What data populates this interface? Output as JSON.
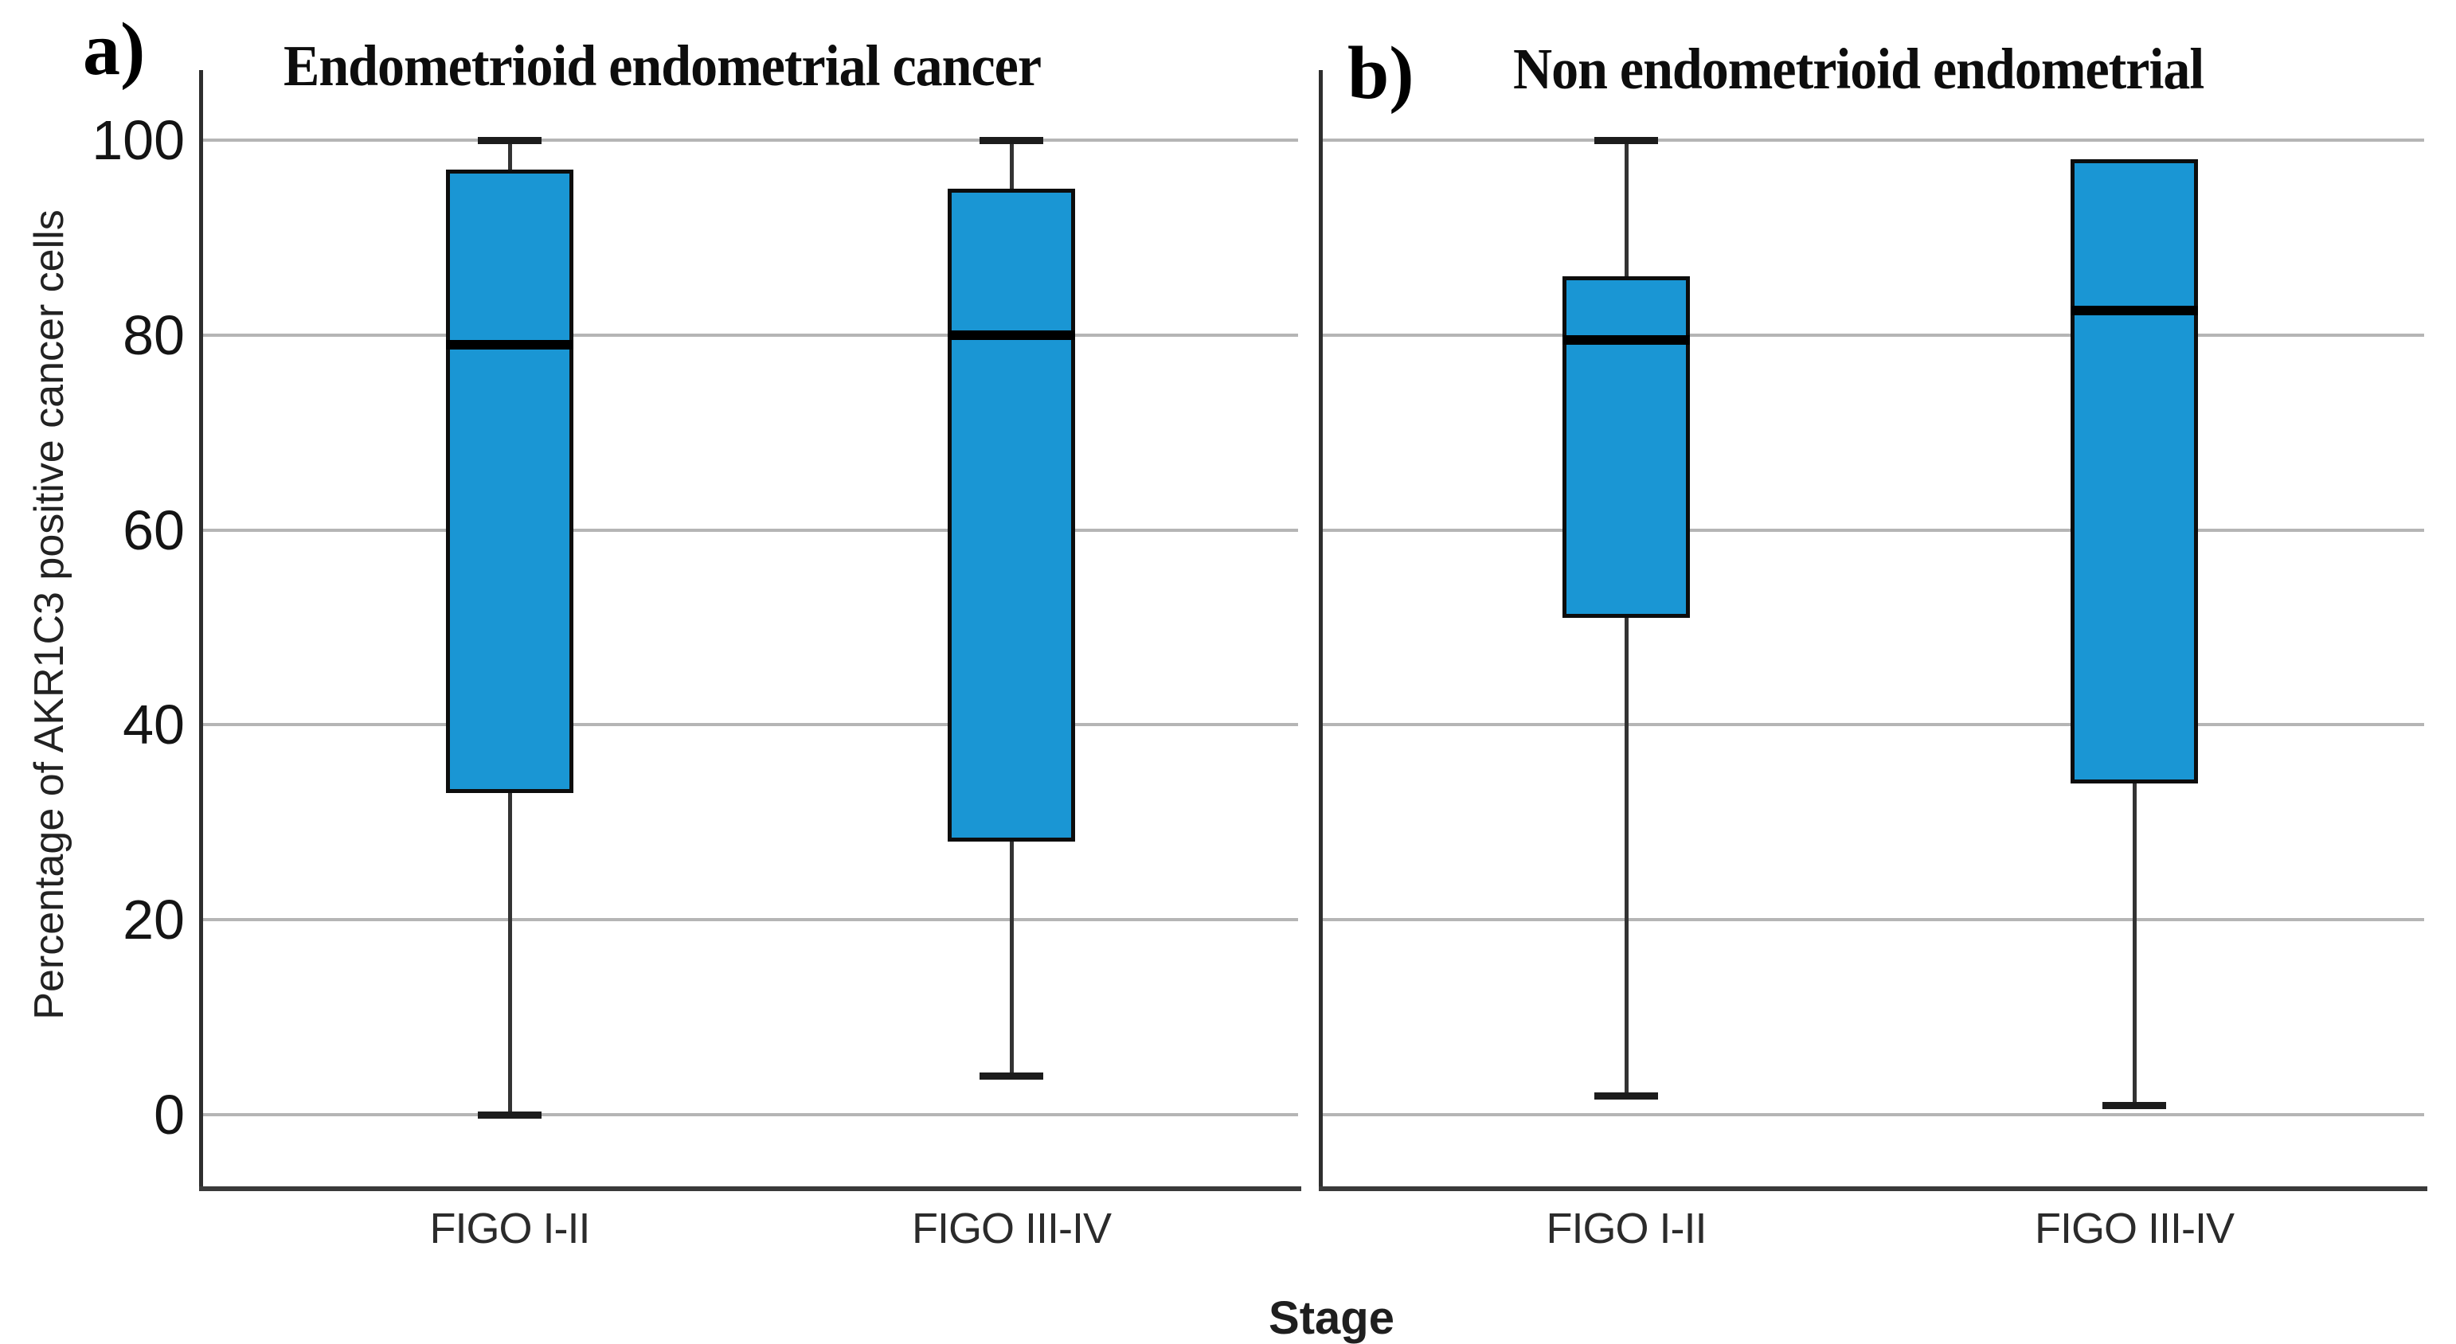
{
  "figure_caption": {
    "panel_a_letter": "a)",
    "panel_b_letter": "b)"
  },
  "chart_data": {
    "type": "box",
    "xlabel": "Stage",
    "ylabel": "Percentage of AKR1C3 positive cancer cells",
    "ylim": [
      0,
      100
    ],
    "yticks": [
      0,
      20,
      40,
      60,
      80,
      100
    ],
    "grid": "horizontal gridlines at every y tick",
    "legend": "none",
    "colors": {
      "box_fill": "#1A96D4",
      "box_border": "#0D0D0D",
      "median_line": "#000000",
      "whisker": "#333333",
      "gridline": "#B5B5B5",
      "axis": "#3A3A3A",
      "text": "#1A1A1A"
    },
    "panels": [
      {
        "label": "a)",
        "title": "Endometrioid endometrial cancer",
        "categories": [
          "FIGO I-II",
          "FIGO III-IV"
        ],
        "boxes": [
          {
            "category": "FIGO I-II",
            "whisker_min": 0,
            "q1": 33,
            "median": 79,
            "q3": 97,
            "whisker_max": 100
          },
          {
            "category": "FIGO III-IV",
            "whisker_min": 4,
            "q1": 28,
            "median": 80,
            "q3": 95,
            "whisker_max": 100
          }
        ]
      },
      {
        "label": "b)",
        "title": "Non endometrioid endometrial",
        "categories": [
          "FIGO I-II",
          "FIGO III-IV"
        ],
        "boxes": [
          {
            "category": "FIGO I-II",
            "whisker_min": 2,
            "q1": 51,
            "median": 79.5,
            "q3": 86,
            "whisker_max": 100
          },
          {
            "category": "FIGO III-IV",
            "whisker_min": 1,
            "q1": 34,
            "median": 82.5,
            "q3": 98,
            "whisker_max": 98
          }
        ]
      }
    ]
  }
}
